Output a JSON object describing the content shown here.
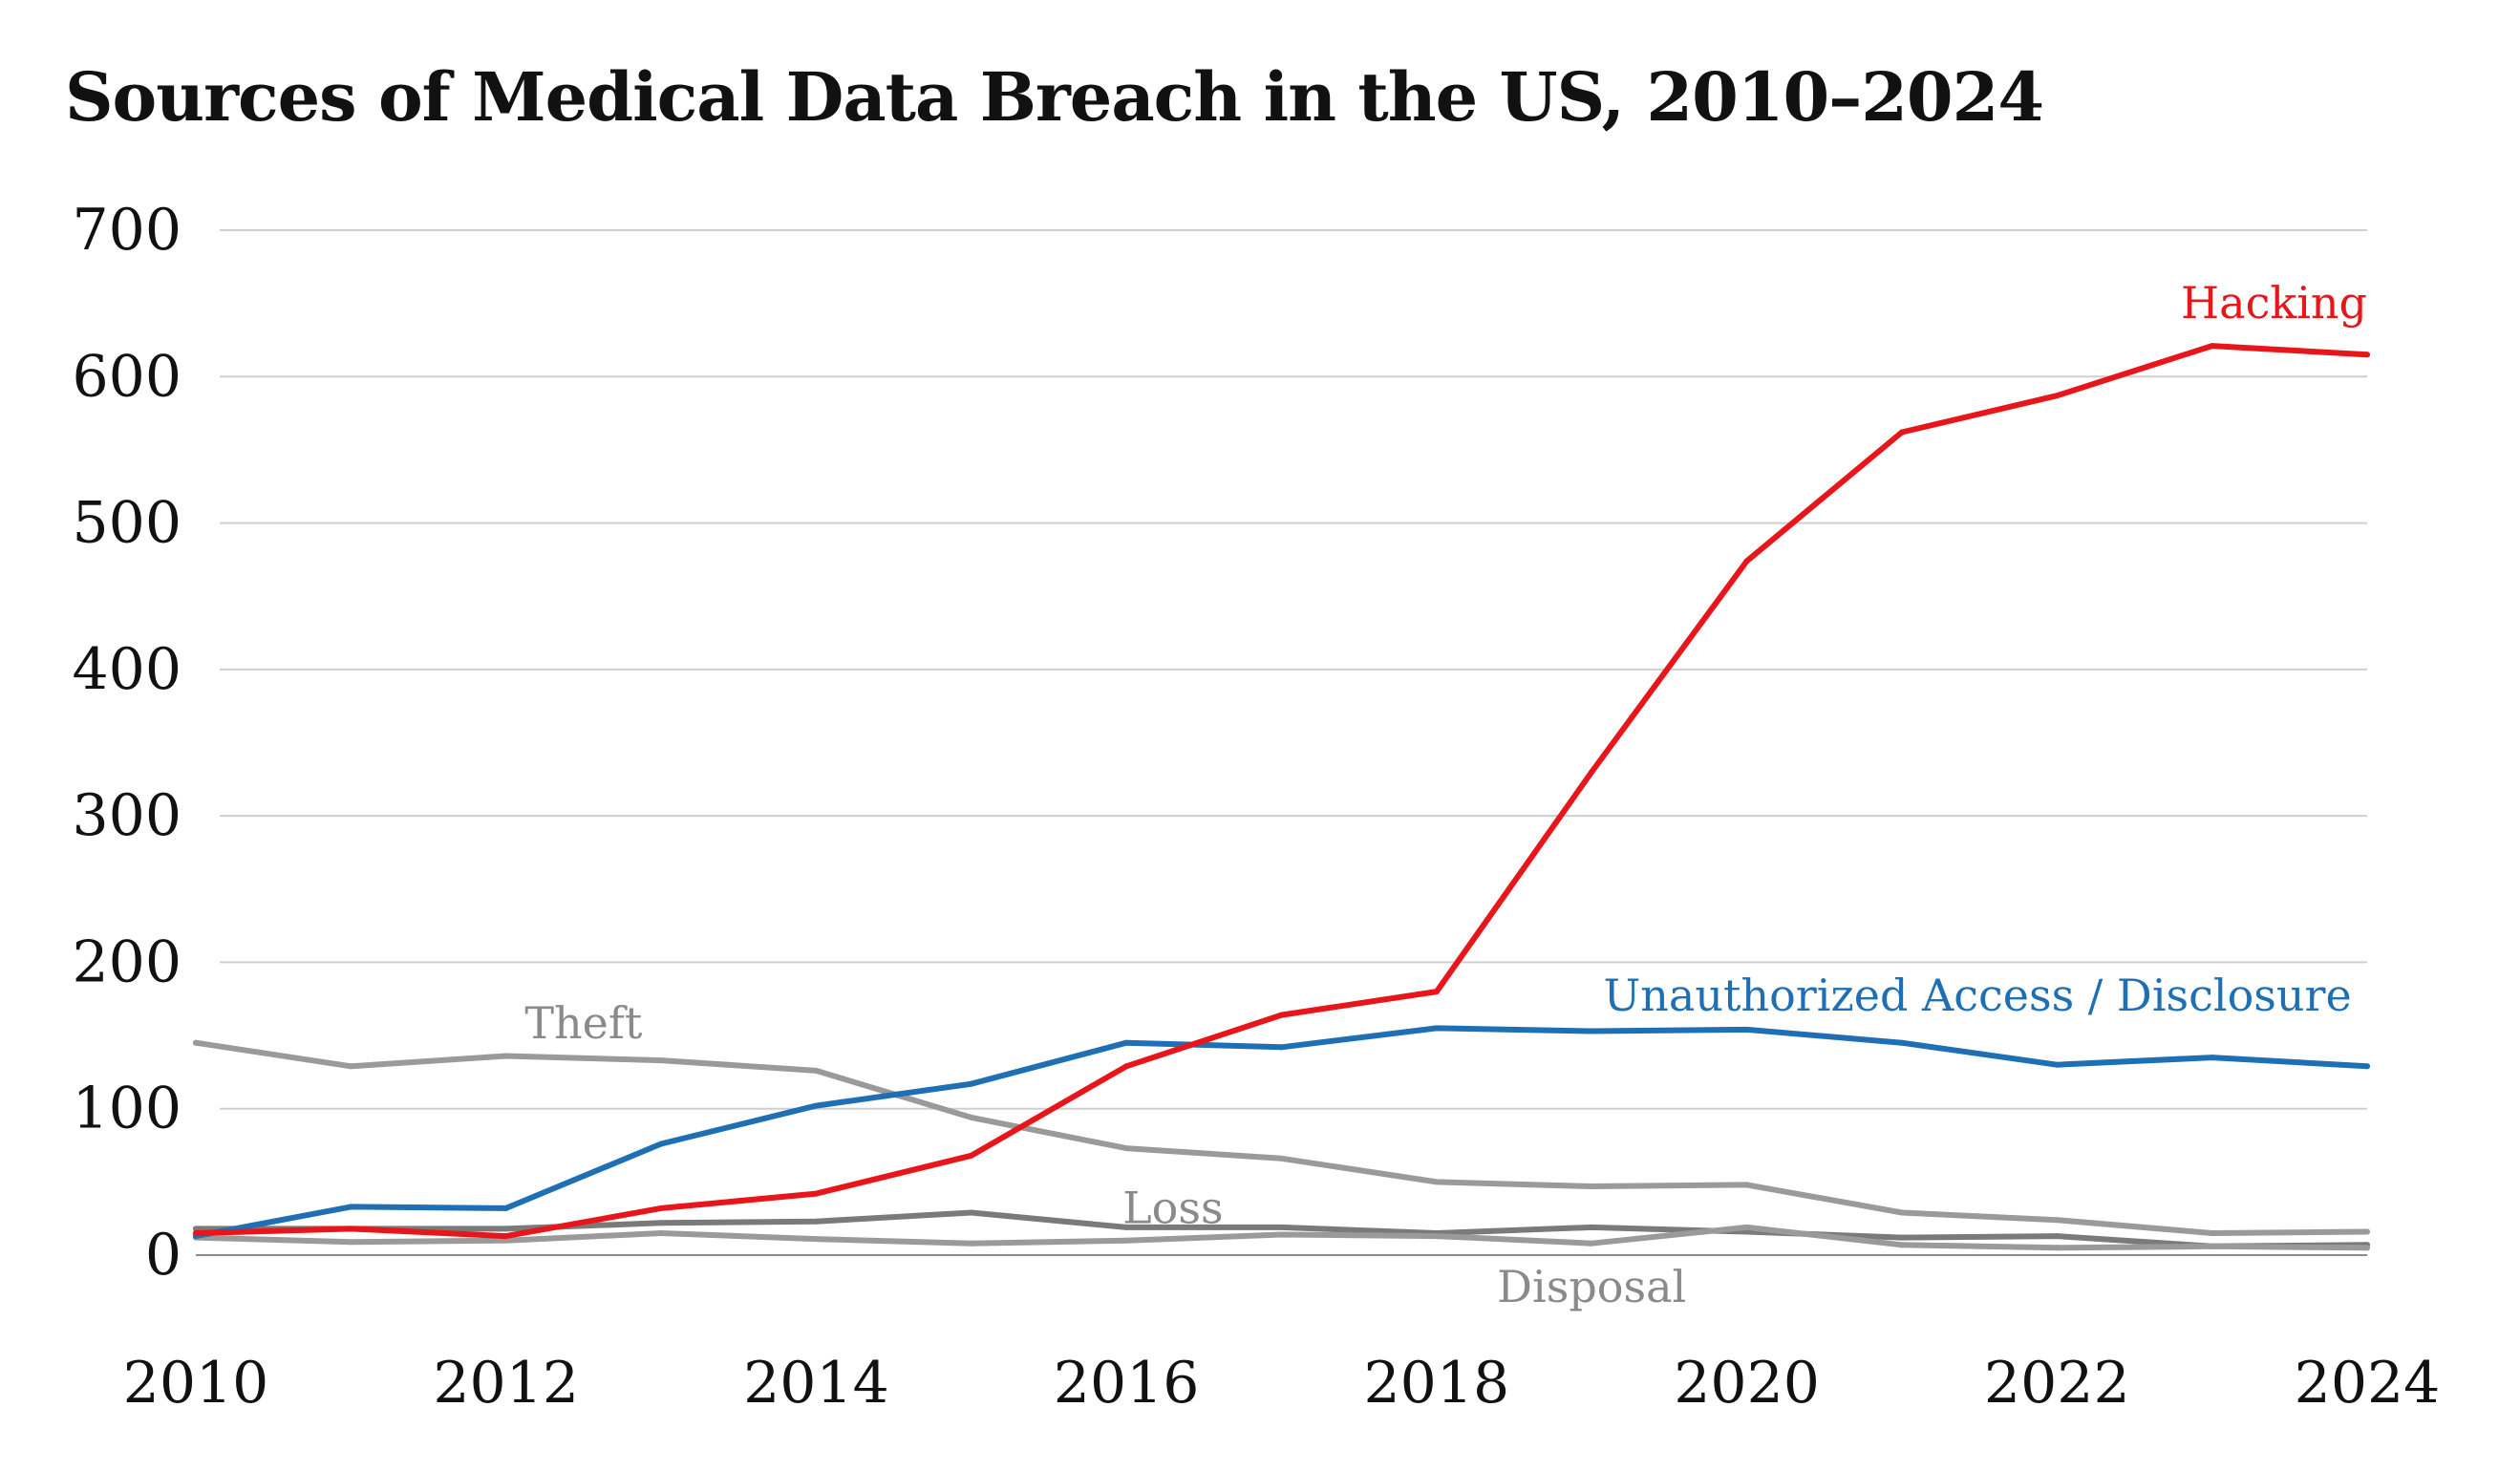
{
  "chart_data": {
    "type": "line",
    "title": "Sources of Medical Data Breach in the US, 2010–2024",
    "xlabel": "",
    "ylabel": "",
    "x": [
      2010,
      2011,
      2012,
      2013,
      2014,
      2015,
      2016,
      2017,
      2018,
      2019,
      2020,
      2021,
      2022,
      2023,
      2024
    ],
    "x_ticks": [
      "2010",
      "2012",
      "2014",
      "2016",
      "2018",
      "2020",
      "2022",
      "2024"
    ],
    "x_tick_values": [
      2010,
      2012,
      2014,
      2016,
      2018,
      2020,
      2022,
      2024
    ],
    "y_ticks": [
      "0",
      "100",
      "200",
      "300",
      "400",
      "500",
      "600",
      "700"
    ],
    "y_tick_values": [
      0,
      100,
      200,
      300,
      400,
      500,
      600,
      700
    ],
    "ylim": [
      0,
      700
    ],
    "xlim": [
      2010,
      2024
    ],
    "grid": true,
    "series": [
      {
        "name": "Theft",
        "label": "Theft",
        "color": "#9a9a9a",
        "label_color": "#8a8a8a",
        "label_anchor": {
          "x": 2012.5,
          "y": 148
        },
        "label_align": "middle",
        "values": [
          145,
          129,
          136,
          133,
          126,
          94,
          73,
          66,
          50,
          47,
          48,
          29,
          24,
          15,
          16
        ]
      },
      {
        "name": "Loss",
        "label": "Loss",
        "color": "#7a7a7a",
        "label_color": "#8a8a8a",
        "label_anchor": {
          "x": 2016.3,
          "y": 22
        },
        "label_align": "middle",
        "values": [
          18,
          18,
          18,
          22,
          23,
          29,
          19,
          19,
          15,
          19,
          16,
          12,
          13,
          6,
          7
        ]
      },
      {
        "name": "Disposal",
        "label": "Disposal",
        "color": "#9a9a9a",
        "label_color": "#8a8a8a",
        "label_anchor": {
          "x": 2019.0,
          "y": -32
        },
        "label_align": "middle",
        "values": [
          12,
          9,
          10,
          15,
          11,
          8,
          10,
          14,
          13,
          8,
          19,
          7,
          5,
          6,
          5
        ]
      },
      {
        "name": "Unauthorized Access / Disclosure",
        "label": "Unauthorized Access / Disclosure",
        "color": "#1f6fb5",
        "label_color": "#1f6fb5",
        "label_anchor": {
          "x": 2023.9,
          "y": 167
        },
        "label_align": "end",
        "values": [
          13,
          33,
          32,
          76,
          102,
          117,
          145,
          142,
          155,
          153,
          154,
          145,
          130,
          135,
          129
        ]
      },
      {
        "name": "Hacking",
        "label": "Hacking",
        "color": "#e8151b",
        "label_color": "#e8151b",
        "label_anchor": {
          "x": 2024.0,
          "y": 640
        },
        "label_align": "end",
        "values": [
          15,
          18,
          13,
          32,
          42,
          68,
          129,
          164,
          180,
          330,
          474,
          562,
          587,
          621,
          615
        ]
      }
    ]
  }
}
